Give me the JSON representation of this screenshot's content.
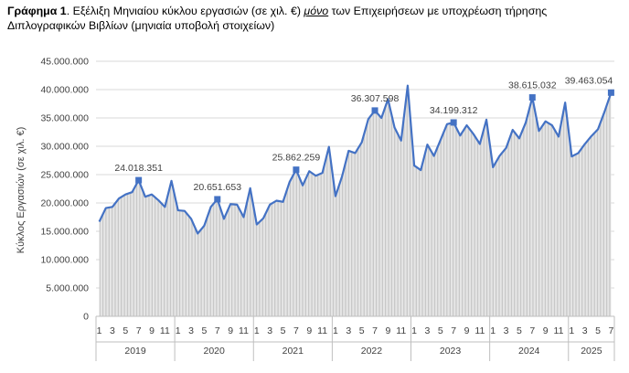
{
  "caption": {
    "label": "Γράφημα 1",
    "text_before": ". Εξέλιξη Μηνιαίου κύκλου εργασιών (σε χιλ. €) ",
    "emphasis": "μόνο",
    "text_after": " των Επιχειρήσεων με υποχρέωση τήρησης Διπλογραφικών Βιβλίων (μηνιαία υποβολή στοιχείων)"
  },
  "colors": {
    "line": "#4472C4",
    "area": "#E6E6E6",
    "hatch": "#BFBFBF",
    "grid": "#D9D9D9",
    "axis": "#BFBFBF",
    "text": "#404040"
  },
  "chart_data": {
    "type": "line",
    "title": "",
    "xlabel": "",
    "ylabel": "Κύκλος Εργασιών (σε χιλ. €)",
    "ylim": [
      0,
      45000000
    ],
    "yticks": [
      0,
      5000000,
      10000000,
      15000000,
      20000000,
      25000000,
      30000000,
      35000000,
      40000000,
      45000000
    ],
    "ytick_labels": [
      "0",
      "5.000.000",
      "10.000.000",
      "15.000.000",
      "20.000.000",
      "25.000.000",
      "30.000.000",
      "35.000.000",
      "40.000.000",
      "45.000.000"
    ],
    "grid": true,
    "legend": "none",
    "years": [
      "2019",
      "2020",
      "2021",
      "2022",
      "2023",
      "2024",
      "2025"
    ],
    "months_per_year": [
      12,
      12,
      12,
      12,
      12,
      12,
      7
    ],
    "month_tick_labels": [
      "1",
      "",
      "3",
      "",
      "5",
      "",
      "7",
      "",
      "9",
      "",
      "11",
      ""
    ],
    "series": [
      {
        "values": [
          16700000,
          19100000,
          19300000,
          20800000,
          21500000,
          21900000,
          24018351,
          21100000,
          21500000,
          20500000,
          19300000,
          23900000,
          18700000,
          18600000,
          17200000,
          14600000,
          16000000,
          19300000,
          20651653,
          17200000,
          19800000,
          19700000,
          17500000,
          22600000,
          16200000,
          17300000,
          19700000,
          20400000,
          20200000,
          23700000,
          25862259,
          23100000,
          25600000,
          24800000,
          25300000,
          29900000,
          21200000,
          24700000,
          29200000,
          28800000,
          30700000,
          34800000,
          36307598,
          35000000,
          38300000,
          33300000,
          31000000,
          40700000,
          26600000,
          25800000,
          30300000,
          28300000,
          31100000,
          33900000,
          34199312,
          31900000,
          33700000,
          32200000,
          30400000,
          34700000,
          26300000,
          28300000,
          29700000,
          32900000,
          31400000,
          34200000,
          38615032,
          32700000,
          34400000,
          33700000,
          31700000,
          37700000,
          28200000,
          28800000,
          30400000,
          31800000,
          33000000,
          36100000,
          39463054
        ]
      }
    ],
    "labeled_points": [
      {
        "index": 6,
        "label": "24.018.351"
      },
      {
        "index": 18,
        "label": "20.651.653"
      },
      {
        "index": 30,
        "label": "25.862.259"
      },
      {
        "index": 42,
        "label": "36.307.598"
      },
      {
        "index": 54,
        "label": "34.199.312"
      },
      {
        "index": 66,
        "label": "38.615.032"
      },
      {
        "index": 78,
        "label": "39.463.054"
      }
    ]
  }
}
